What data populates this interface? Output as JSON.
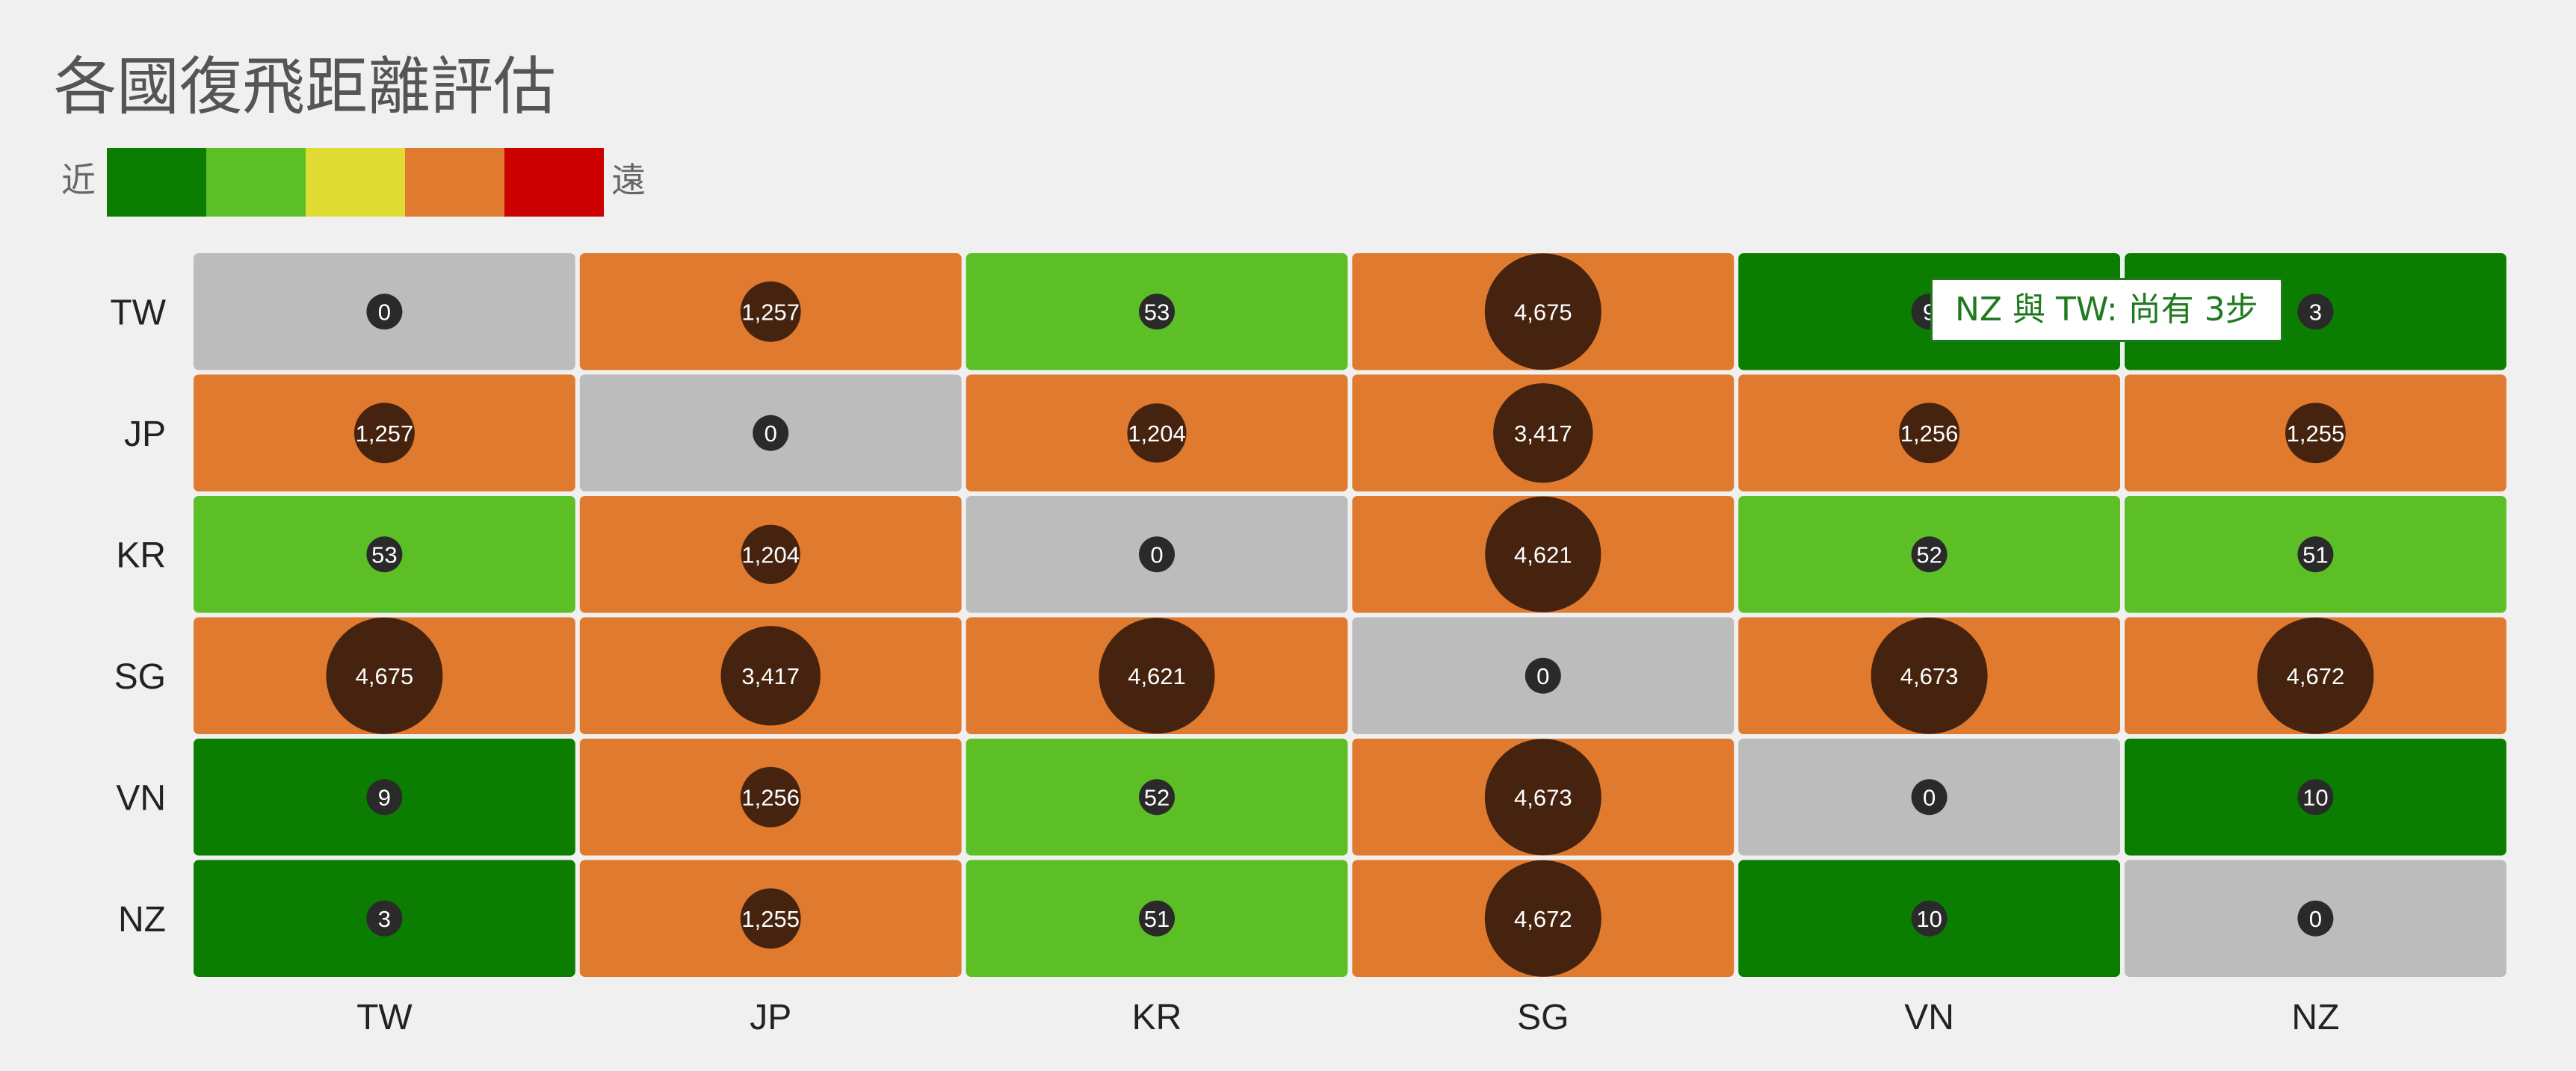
{
  "chart_data": {
    "type": "heatmap",
    "title": "各國復飛距離評估",
    "legend": {
      "near_label": "近",
      "far_label": "遠",
      "colors": [
        "#0b7d00",
        "#5cbf26",
        "#e0dc33",
        "#e07a2e",
        "#cc0000"
      ]
    },
    "rows": [
      "TW",
      "JP",
      "KR",
      "SG",
      "VN",
      "NZ"
    ],
    "columns": [
      "TW",
      "JP",
      "KR",
      "SG",
      "VN",
      "NZ"
    ],
    "values": [
      [
        0,
        1257,
        53,
        4675,
        9,
        3
      ],
      [
        1257,
        0,
        1204,
        3417,
        1256,
        1255
      ],
      [
        53,
        1204,
        0,
        4621,
        52,
        51
      ],
      [
        4675,
        3417,
        4621,
        0,
        4673,
        4672
      ],
      [
        9,
        1256,
        52,
        4673,
        0,
        10
      ],
      [
        3,
        1255,
        51,
        4672,
        10,
        0
      ]
    ],
    "value_labels": [
      [
        "0",
        "1,257",
        "53",
        "4,675",
        "9",
        "3"
      ],
      [
        "1,257",
        "0",
        "1,204",
        "3,417",
        "1,256",
        "1,255"
      ],
      [
        "53",
        "1,204",
        "0",
        "4,621",
        "52",
        "51"
      ],
      [
        "4,675",
        "3,417",
        "4,621",
        "0",
        "4,673",
        "4,672"
      ],
      [
        "9",
        "1,256",
        "52",
        "4,673",
        "0",
        "10"
      ],
      [
        "3",
        "1,255",
        "51",
        "4,672",
        "10",
        "0"
      ]
    ],
    "cell_colors": {
      "diagonal": "#bcbcbc",
      "very_near": "#0b7d00",
      "near": "#5cbf26",
      "far": "#e07a2e"
    },
    "bubble_colors": {
      "large": "#45230f",
      "small": "#2a2a2a"
    }
  },
  "tooltip": {
    "text": "NZ 與 TW: 尚有 3步",
    "border_color": "#1f7a1f"
  }
}
